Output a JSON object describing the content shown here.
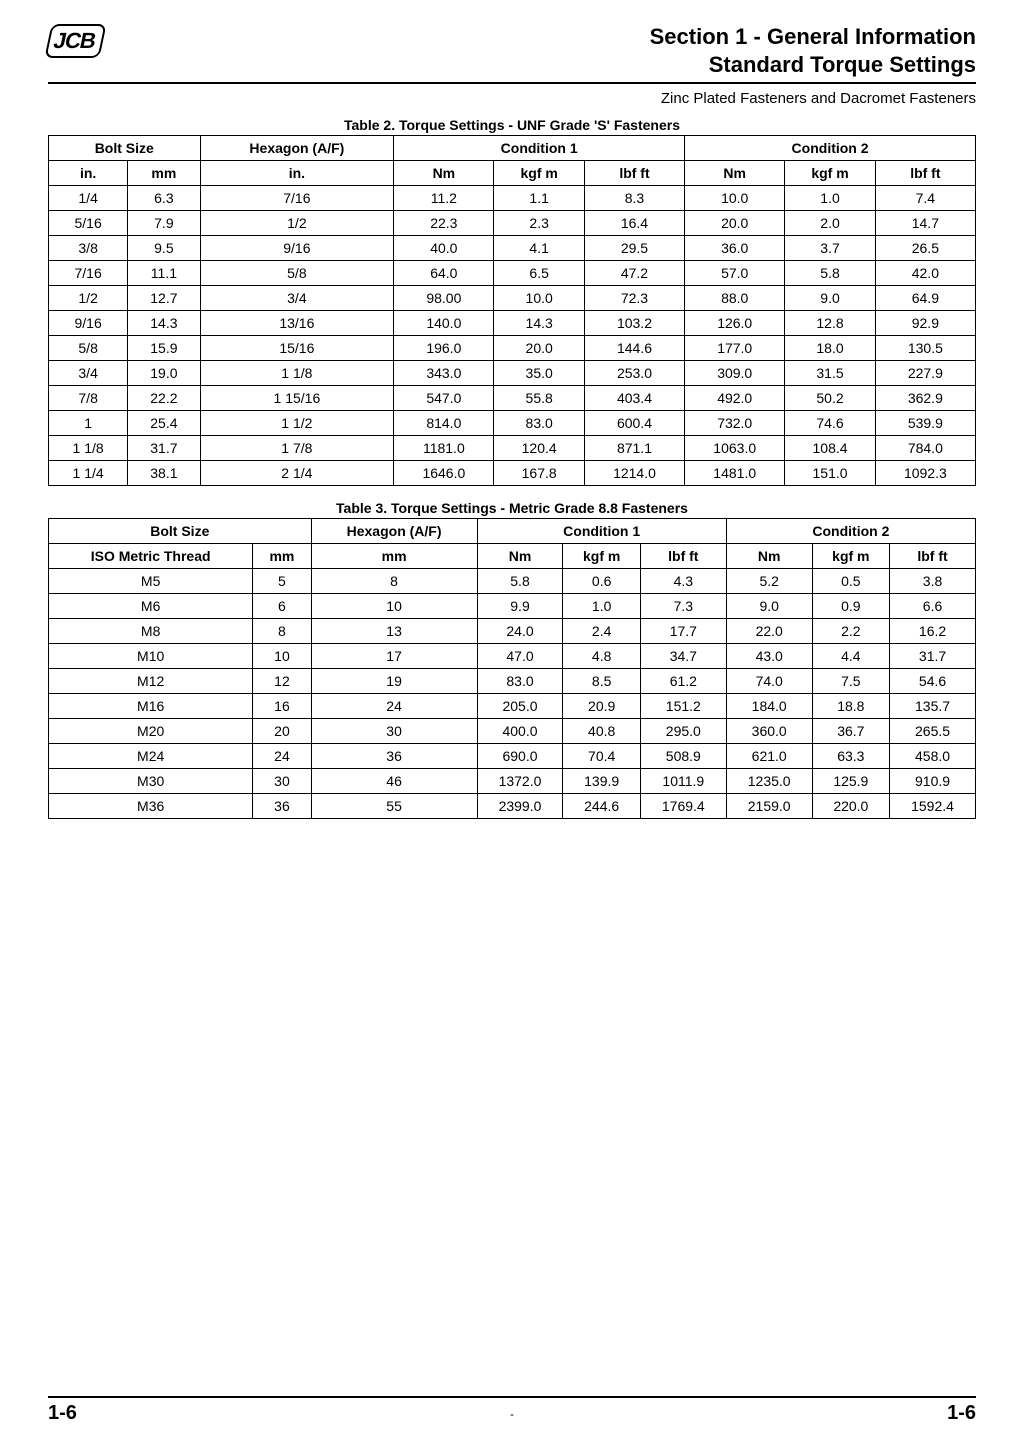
{
  "logo_text": "JCB",
  "header": {
    "line1": "Section 1 - General Information",
    "line2": "Standard Torque Settings",
    "sub": "Zinc Plated Fasteners and Dacromet Fasteners"
  },
  "footer": {
    "left": "1-6",
    "center": "-",
    "right": "1-6"
  },
  "table2": {
    "caption": "Table 2. Torque Settings - UNF Grade 'S' Fasteners",
    "head_bolt_size": "Bolt Size",
    "head_hex": "Hexagon (A/F)",
    "head_cond1": "Condition 1",
    "head_cond2": "Condition 2",
    "sub_in": "in.",
    "sub_mm": "mm",
    "sub_hex_in": "in.",
    "sub_nm": "Nm",
    "sub_kgfm": "kgf m",
    "sub_lbfft": "lbf ft",
    "rows": [
      {
        "in": "1/4",
        "mm": "6.3",
        "hex": "7/16",
        "c1nm": "11.2",
        "c1kg": "1.1",
        "c1lb": "8.3",
        "c2nm": "10.0",
        "c2kg": "1.0",
        "c2lb": "7.4"
      },
      {
        "in": "5/16",
        "mm": "7.9",
        "hex": "1/2",
        "c1nm": "22.3",
        "c1kg": "2.3",
        "c1lb": "16.4",
        "c2nm": "20.0",
        "c2kg": "2.0",
        "c2lb": "14.7"
      },
      {
        "in": "3/8",
        "mm": "9.5",
        "hex": "9/16",
        "c1nm": "40.0",
        "c1kg": "4.1",
        "c1lb": "29.5",
        "c2nm": "36.0",
        "c2kg": "3.7",
        "c2lb": "26.5"
      },
      {
        "in": "7/16",
        "mm": "11.1",
        "hex": "5/8",
        "c1nm": "64.0",
        "c1kg": "6.5",
        "c1lb": "47.2",
        "c2nm": "57.0",
        "c2kg": "5.8",
        "c2lb": "42.0"
      },
      {
        "in": "1/2",
        "mm": "12.7",
        "hex": "3/4",
        "c1nm": "98.00",
        "c1kg": "10.0",
        "c1lb": "72.3",
        "c2nm": "88.0",
        "c2kg": "9.0",
        "c2lb": "64.9"
      },
      {
        "in": "9/16",
        "mm": "14.3",
        "hex": "13/16",
        "c1nm": "140.0",
        "c1kg": "14.3",
        "c1lb": "103.2",
        "c2nm": "126.0",
        "c2kg": "12.8",
        "c2lb": "92.9"
      },
      {
        "in": "5/8",
        "mm": "15.9",
        "hex": "15/16",
        "c1nm": "196.0",
        "c1kg": "20.0",
        "c1lb": "144.6",
        "c2nm": "177.0",
        "c2kg": "18.0",
        "c2lb": "130.5"
      },
      {
        "in": "3/4",
        "mm": "19.0",
        "hex": "1 1/8",
        "c1nm": "343.0",
        "c1kg": "35.0",
        "c1lb": "253.0",
        "c2nm": "309.0",
        "c2kg": "31.5",
        "c2lb": "227.9"
      },
      {
        "in": "7/8",
        "mm": "22.2",
        "hex": "1 15/16",
        "c1nm": "547.0",
        "c1kg": "55.8",
        "c1lb": "403.4",
        "c2nm": "492.0",
        "c2kg": "50.2",
        "c2lb": "362.9"
      },
      {
        "in": "1",
        "mm": "25.4",
        "hex": "1 1/2",
        "c1nm": "814.0",
        "c1kg": "83.0",
        "c1lb": "600.4",
        "c2nm": "732.0",
        "c2kg": "74.6",
        "c2lb": "539.9"
      },
      {
        "in": "1 1/8",
        "mm": "31.7",
        "hex": "1 7/8",
        "c1nm": "1181.0",
        "c1kg": "120.4",
        "c1lb": "871.1",
        "c2nm": "1063.0",
        "c2kg": "108.4",
        "c2lb": "784.0"
      },
      {
        "in": "1 1/4",
        "mm": "38.1",
        "hex": "2 1/4",
        "c1nm": "1646.0",
        "c1kg": "167.8",
        "c1lb": "1214.0",
        "c2nm": "1481.0",
        "c2kg": "151.0",
        "c2lb": "1092.3"
      }
    ]
  },
  "table3": {
    "caption": "Table 3. Torque Settings - Metric Grade 8.8 Fasteners",
    "head_bolt_size": "Bolt Size",
    "head_hex": "Hexagon (A/F)",
    "head_cond1": "Condition 1",
    "head_cond2": "Condition 2",
    "sub_iso": "ISO Metric Thread",
    "sub_mm": "mm",
    "sub_hex_mm": "mm",
    "sub_nm": "Nm",
    "sub_kgfm": "kgf m",
    "sub_lbfft": "lbf ft",
    "rows": [
      {
        "iso": "M5",
        "mm": "5",
        "hex": "8",
        "c1nm": "5.8",
        "c1kg": "0.6",
        "c1lb": "4.3",
        "c2nm": "5.2",
        "c2kg": "0.5",
        "c2lb": "3.8"
      },
      {
        "iso": "M6",
        "mm": "6",
        "hex": "10",
        "c1nm": "9.9",
        "c1kg": "1.0",
        "c1lb": "7.3",
        "c2nm": "9.0",
        "c2kg": "0.9",
        "c2lb": "6.6"
      },
      {
        "iso": "M8",
        "mm": "8",
        "hex": "13",
        "c1nm": "24.0",
        "c1kg": "2.4",
        "c1lb": "17.7",
        "c2nm": "22.0",
        "c2kg": "2.2",
        "c2lb": "16.2"
      },
      {
        "iso": "M10",
        "mm": "10",
        "hex": "17",
        "c1nm": "47.0",
        "c1kg": "4.8",
        "c1lb": "34.7",
        "c2nm": "43.0",
        "c2kg": "4.4",
        "c2lb": "31.7"
      },
      {
        "iso": "M12",
        "mm": "12",
        "hex": "19",
        "c1nm": "83.0",
        "c1kg": "8.5",
        "c1lb": "61.2",
        "c2nm": "74.0",
        "c2kg": "7.5",
        "c2lb": "54.6"
      },
      {
        "iso": "M16",
        "mm": "16",
        "hex": "24",
        "c1nm": "205.0",
        "c1kg": "20.9",
        "c1lb": "151.2",
        "c2nm": "184.0",
        "c2kg": "18.8",
        "c2lb": "135.7"
      },
      {
        "iso": "M20",
        "mm": "20",
        "hex": "30",
        "c1nm": "400.0",
        "c1kg": "40.8",
        "c1lb": "295.0",
        "c2nm": "360.0",
        "c2kg": "36.7",
        "c2lb": "265.5"
      },
      {
        "iso": "M24",
        "mm": "24",
        "hex": "36",
        "c1nm": "690.0",
        "c1kg": "70.4",
        "c1lb": "508.9",
        "c2nm": "621.0",
        "c2kg": "63.3",
        "c2lb": "458.0"
      },
      {
        "iso": "M30",
        "mm": "30",
        "hex": "46",
        "c1nm": "1372.0",
        "c1kg": "139.9",
        "c1lb": "1011.9",
        "c2nm": "1235.0",
        "c2kg": "125.9",
        "c2lb": "910.9"
      },
      {
        "iso": "M36",
        "mm": "36",
        "hex": "55",
        "c1nm": "2399.0",
        "c1kg": "244.6",
        "c1lb": "1769.4",
        "c2nm": "2159.0",
        "c2kg": "220.0",
        "c2lb": "1592.4"
      }
    ]
  },
  "style": {
    "background_color": "#ffffff",
    "text_color": "#000000",
    "border_color": "#000000",
    "heading_fontsize_pt": 16,
    "body_fontsize_pt": 10,
    "caption_fontsize_pt": 10
  }
}
